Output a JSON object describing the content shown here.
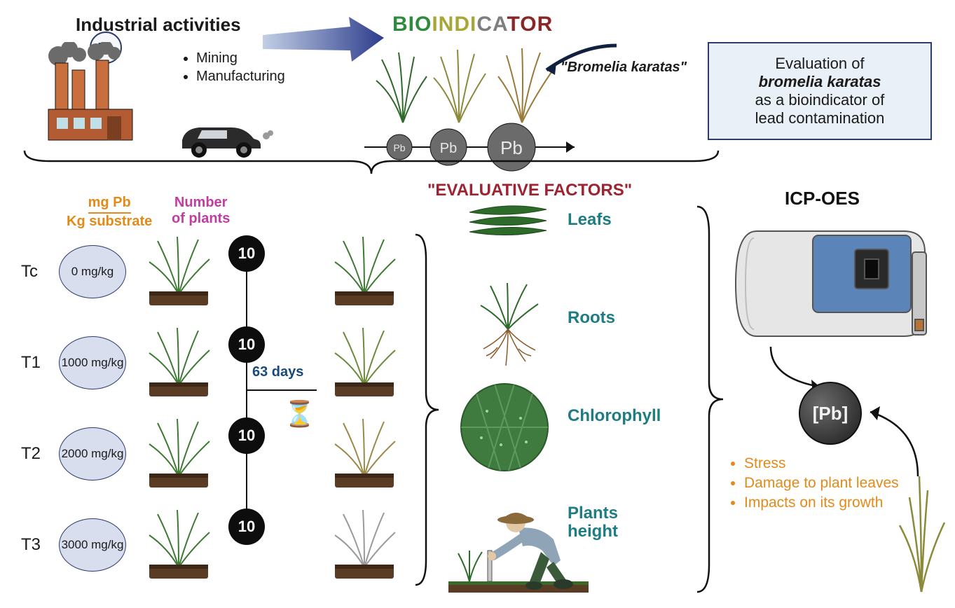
{
  "header": {
    "industrial_title": "Industrial activities",
    "pb_symbol": "Pb",
    "bullets": [
      "Mining",
      "Manufacturing"
    ],
    "bioindicator_word": {
      "part1": "BIO",
      "part2": "INDI",
      "part3": "CA",
      "part4": "TOR"
    },
    "bromelia_label": "\"Bromelia karatas\"",
    "eval_box_line1": "Evaluation of",
    "eval_box_line2_italic": "bromelia karatas",
    "eval_box_line3": "as a bioindicator of",
    "eval_box_line4": "lead contamination",
    "pb_circles": [
      "Pb",
      "Pb",
      "Pb"
    ]
  },
  "colors": {
    "orange": "#e28a1a",
    "magenta": "#c23da3",
    "teal": "#1e7d82",
    "darkblue": "#2d3d6b",
    "maroon": "#9e2330",
    "lightblue_box": "#eaf0f8",
    "dose_fill": "#d9deef",
    "black": "#0d0d0d",
    "plant_green": "#3e7a34",
    "plant_olive": "#8a8a3a",
    "plant_gray": "#8c8c8c",
    "plant_brown": "#9a7a3a",
    "soil": "#5a3b24",
    "icp_blue": "#5b85b8",
    "icp_gray": "#d8d8d8"
  },
  "midsection": {
    "eval_factors_title": "\"EVALUATIVE FACTORS\"",
    "ratio_top": "mg Pb",
    "ratio_bottom": "Kg substrate",
    "num_plants_label": "Number of plants",
    "days_label": "63 days",
    "treatments": [
      {
        "id": "Tc",
        "dose": "0 mg/kg",
        "count": "10",
        "left_color": "#3e7a34",
        "right_color": "#3e7a34"
      },
      {
        "id": "T1",
        "dose": "1000 mg/kg",
        "count": "10",
        "left_color": "#3e7a34",
        "right_color": "#6d8a3a"
      },
      {
        "id": "T2",
        "dose": "2000 mg/kg",
        "count": "10",
        "left_color": "#3e7a34",
        "right_color": "#9a8a4a"
      },
      {
        "id": "T3",
        "dose": "3000 mg/kg",
        "count": "10",
        "left_color": "#3e7a34",
        "right_color": "#9a9a9a"
      }
    ]
  },
  "factors": {
    "leafs": "Leafs",
    "roots": "Roots",
    "chlorophyll": "Chlorophyll",
    "plants_height": "Plants height"
  },
  "right": {
    "icp_label": "ICP-OES",
    "pb_result": "[Pb]",
    "impacts": [
      "Stress",
      "Damage to plant leaves",
      "Impacts on its growth"
    ]
  }
}
